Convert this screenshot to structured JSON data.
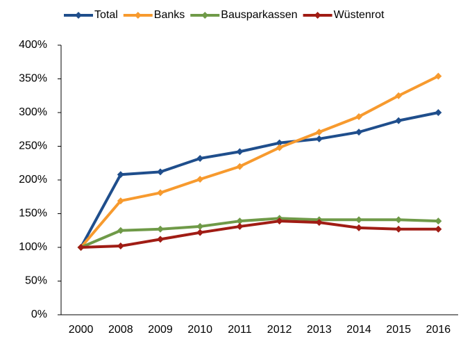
{
  "chart_data": {
    "type": "line",
    "categories": [
      "2000",
      "2008",
      "2009",
      "2010",
      "2011",
      "2012",
      "2013",
      "2014",
      "2015",
      "2016"
    ],
    "series": [
      {
        "name": "Total",
        "color": "#1f4e8c",
        "values": [
          100,
          208,
          212,
          232,
          242,
          255,
          261,
          271,
          288,
          300
        ]
      },
      {
        "name": "Banks",
        "color": "#f79a2e",
        "values": [
          100,
          169,
          181,
          201,
          220,
          248,
          271,
          294,
          325,
          354
        ]
      },
      {
        "name": "Bausparkassen",
        "color": "#6f9a48",
        "values": [
          100,
          125,
          127,
          131,
          139,
          143,
          141,
          141,
          141,
          139
        ]
      },
      {
        "name": "Wüstenrot",
        "color": "#a01c14",
        "values": [
          100,
          102,
          112,
          122,
          131,
          139,
          137,
          129,
          127,
          127
        ]
      }
    ],
    "ylim": [
      0,
      400
    ],
    "yticks": [
      {
        "value": 0,
        "label": "0%"
      },
      {
        "value": 50,
        "label": "50%"
      },
      {
        "value": 100,
        "label": "100%"
      },
      {
        "value": 150,
        "label": "150%"
      },
      {
        "value": 200,
        "label": "200%"
      },
      {
        "value": 250,
        "label": "250%"
      },
      {
        "value": 300,
        "label": "300%"
      },
      {
        "value": 350,
        "label": "350%"
      },
      {
        "value": 400,
        "label": "400%"
      }
    ],
    "grid": false,
    "legend": "top"
  }
}
